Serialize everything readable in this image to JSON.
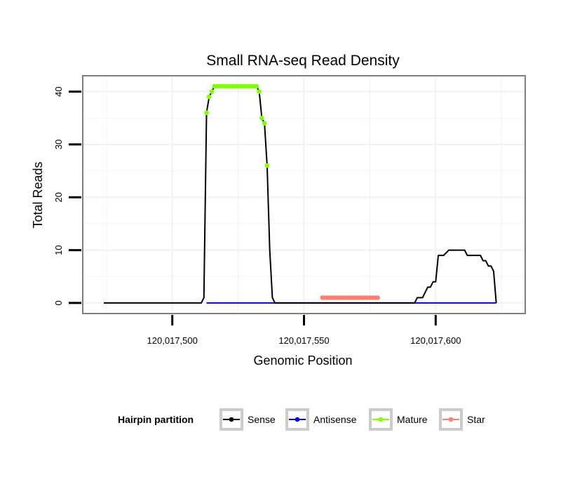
{
  "chart_data": {
    "type": "line",
    "title": "Small RNA-seq Read Density",
    "xlabel": "Genomic Position",
    "ylabel": "Total Reads",
    "xlim": [
      120017466,
      120017634
    ],
    "ylim": [
      -2,
      43
    ],
    "x_ticks": [
      {
        "value": 120017500,
        "label": "120,017,500"
      },
      {
        "value": 120017550,
        "label": "120,017,550"
      },
      {
        "value": 120017600,
        "label": "120,017,600"
      }
    ],
    "y_ticks": [
      {
        "value": 0,
        "label": "0"
      },
      {
        "value": 10,
        "label": "10"
      },
      {
        "value": 20,
        "label": "20"
      },
      {
        "value": 30,
        "label": "30"
      },
      {
        "value": 40,
        "label": "40"
      }
    ],
    "grid": true,
    "legend": {
      "title": "Hairpin partition",
      "position": "bottom",
      "entries": [
        {
          "name": "Sense",
          "color": "#000000"
        },
        {
          "name": "Antisense",
          "color": "#0000ff"
        },
        {
          "name": "Mature",
          "color": "#7fff00"
        },
        {
          "name": "Star",
          "color": "#fa8072"
        }
      ]
    },
    "series": [
      {
        "name": "Sense",
        "color": "#000000",
        "line": true,
        "points": false,
        "x": [
          120017474,
          120017511,
          120017512,
          120017513,
          120017514,
          120017515,
          120017516,
          120017517,
          120017518,
          120017519,
          120017520,
          120017521,
          120017522,
          120017523,
          120017524,
          120017525,
          120017526,
          120017527,
          120017528,
          120017529,
          120017530,
          120017531,
          120017532,
          120017533,
          120017534,
          120017535,
          120017536,
          120017537,
          120017538,
          120017539,
          120017540,
          120017541,
          120017548,
          120017592,
          120017593,
          120017595,
          120017596,
          120017597,
          120017598,
          120017599,
          120017600,
          120017601,
          120017602,
          120017603,
          120017605,
          120017606,
          120017611,
          120017612,
          120017617,
          120017618,
          120017619,
          120017620,
          120017621,
          120017622,
          120017623
        ],
        "y": [
          0,
          0,
          1,
          36,
          39,
          40,
          41,
          41,
          41,
          41,
          41,
          41,
          41,
          41,
          41,
          41,
          41,
          41,
          41,
          41,
          41,
          41,
          41,
          40,
          35,
          34,
          26,
          10,
          1,
          0,
          0,
          0,
          0,
          0,
          1,
          1,
          2,
          3,
          3,
          4,
          4,
          9,
          9,
          9,
          10,
          10,
          10,
          9,
          9,
          8,
          8,
          7,
          7,
          6,
          0
        ]
      },
      {
        "name": "Antisense",
        "color": "#0000ff",
        "line": true,
        "points": false,
        "x": [
          120017513,
          120017623
        ],
        "y": [
          0,
          0
        ]
      },
      {
        "name": "Mature",
        "color": "#7fff00",
        "line": false,
        "points": true,
        "x": [
          120017513,
          120017514,
          120017515,
          120017516,
          120017517,
          120017518,
          120017519,
          120017520,
          120017521,
          120017522,
          120017523,
          120017524,
          120017525,
          120017526,
          120017527,
          120017528,
          120017529,
          120017530,
          120017531,
          120017532,
          120017533,
          120017534,
          120017535,
          120017536
        ],
        "y": [
          36,
          39,
          40,
          41,
          41,
          41,
          41,
          41,
          41,
          41,
          41,
          41,
          41,
          41,
          41,
          41,
          41,
          41,
          41,
          41,
          40,
          35,
          34,
          26
        ]
      },
      {
        "name": "Star",
        "color": "#fa8072",
        "line": false,
        "points": true,
        "x": [
          120017557,
          120017558,
          120017559,
          120017560,
          120017561,
          120017562,
          120017563,
          120017564,
          120017565,
          120017566,
          120017567,
          120017568,
          120017569,
          120017570,
          120017571,
          120017572,
          120017573,
          120017574,
          120017575,
          120017576,
          120017577,
          120017578
        ],
        "y": [
          1,
          1,
          1,
          1,
          1,
          1,
          1,
          1,
          1,
          1,
          1,
          1,
          1,
          1,
          1,
          1,
          1,
          1,
          1,
          1,
          1,
          1
        ]
      }
    ]
  }
}
